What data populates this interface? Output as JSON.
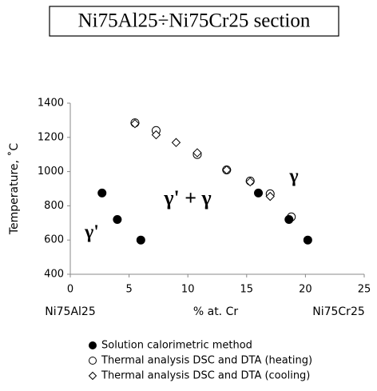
{
  "chart_data": {
    "type": "scatter",
    "title": "Ni75Al25÷Ni75Cr25 section",
    "xlabel": "% at. Cr",
    "ylabel": "Temperature, ˚C",
    "x_end_labels": [
      "Ni75Al25",
      "Ni75Cr25"
    ],
    "xlim": [
      0,
      25
    ],
    "xticks": [
      0,
      5,
      10,
      15,
      20,
      25
    ],
    "ylim": [
      400,
      1400
    ],
    "yticks": [
      400,
      600,
      800,
      1000,
      1200,
      1400
    ],
    "annotations": [
      "γ'",
      "γ' + γ",
      "γ"
    ],
    "series": [
      {
        "name": "Solution calorimetric method",
        "marker": "filled-circle",
        "color": "#000000",
        "x": [
          2.7,
          4.0,
          6.0,
          16.0,
          18.6,
          20.2
        ],
        "values": [
          875,
          720,
          600,
          875,
          720,
          600
        ]
      },
      {
        "name": "Thermal analysis DSC and DTA (heating)",
        "marker": "circle",
        "color": "#000000",
        "x": [
          5.5,
          7.3,
          10.8,
          13.3,
          15.3,
          17.0,
          18.8
        ],
        "values": [
          1285,
          1240,
          1100,
          1010,
          945,
          870,
          735
        ]
      },
      {
        "name": "Thermal analysis DSC and DTA (cooling)",
        "marker": "diamond",
        "color": "#000000",
        "x": [
          5.5,
          7.3,
          9.0,
          10.8,
          13.3,
          15.3,
          17.0
        ],
        "values": [
          1280,
          1215,
          1170,
          1110,
          1010,
          940,
          855
        ]
      }
    ]
  }
}
